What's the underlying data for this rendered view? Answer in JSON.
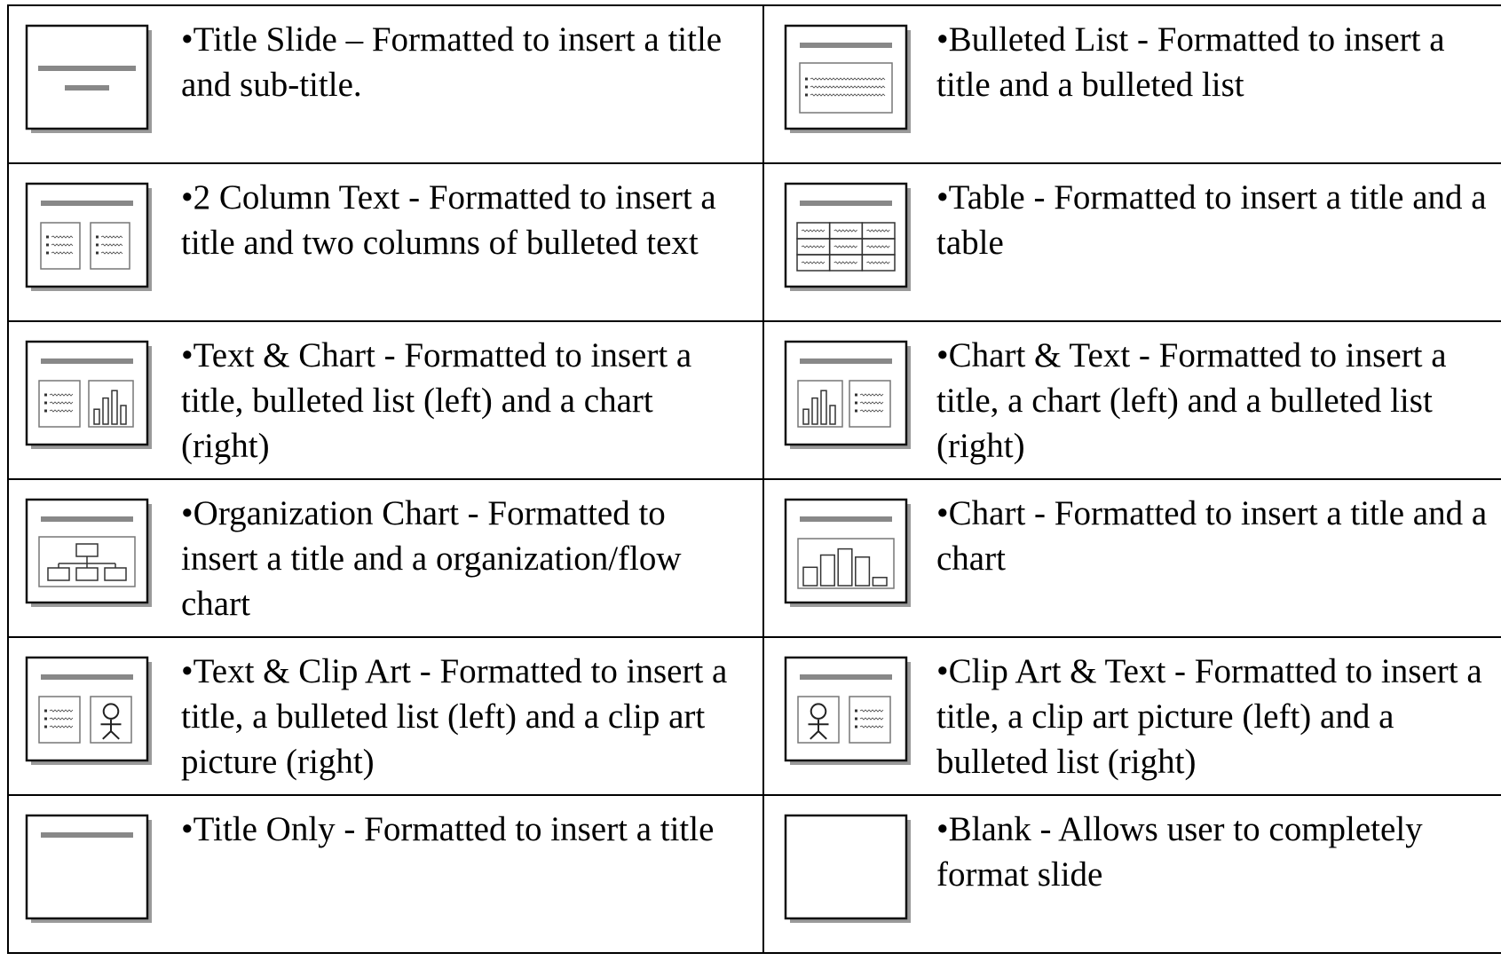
{
  "table": {
    "rows": [
      [
        "•Title Slide – Formatted to insert a title and sub-title.",
        "•Bulleted List - Formatted to insert a title and a bulleted list"
      ],
      [
        "•2 Column Text - Formatted to insert a title and two columns of bulleted text",
        "•Table - Formatted to insert a title and a table"
      ],
      [
        "•Text & Chart - Formatted to insert a title, bulleted list (left) and a chart (right)",
        "•Chart & Text - Formatted to insert a title, a chart (left) and a bulleted list (right)"
      ],
      [
        "•Organization Chart - Formatted to insert a title and a organization/flow chart",
        "•Chart - Formatted to insert a title and a chart"
      ],
      [
        "•Text & Clip Art - Formatted to insert a title, a bulleted list (left) and a clip art picture (right)",
        "•Clip Art & Text - Formatted to insert a title, a clip art picture (left) and a bulleted list (right)"
      ],
      [
        "•Title Only - Formatted to insert a title",
        "•Blank - Allows user to completely format slide"
      ]
    ]
  }
}
